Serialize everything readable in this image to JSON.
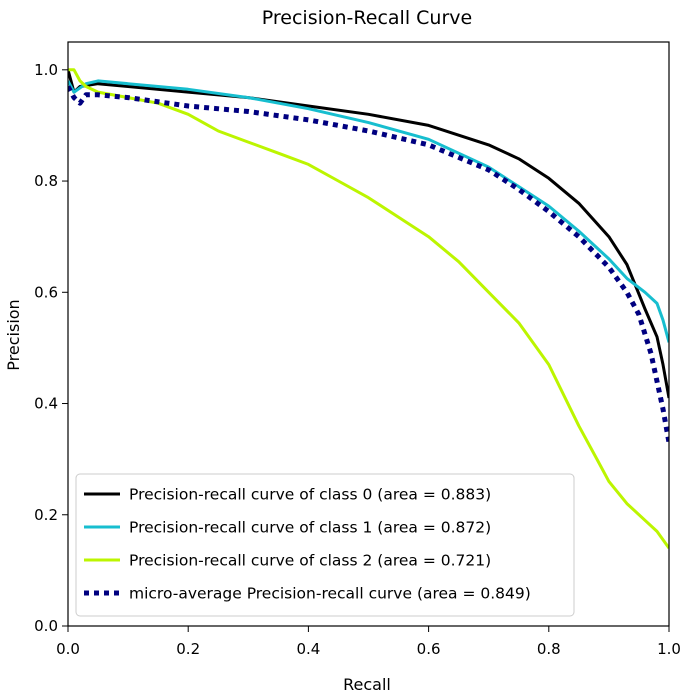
{
  "chart_data": {
    "type": "line",
    "title": "Precision-Recall Curve",
    "xlabel": "Recall",
    "ylabel": "Precision",
    "xlim": [
      0.0,
      1.0
    ],
    "ylim": [
      0.0,
      1.05
    ],
    "xticks": [
      0.0,
      0.2,
      0.4,
      0.6,
      0.8,
      1.0
    ],
    "yticks": [
      0.0,
      0.2,
      0.4,
      0.6,
      0.8,
      1.0
    ],
    "xtick_labels": [
      "0.0",
      "0.2",
      "0.4",
      "0.6",
      "0.8",
      "1.0"
    ],
    "ytick_labels": [
      "0.0",
      "0.2",
      "0.4",
      "0.6",
      "0.8",
      "1.0"
    ],
    "grid": false,
    "legend_position": "lower-left",
    "series": [
      {
        "name": "Precision-recall curve of class 0 (area = 0.883)",
        "color": "#000000",
        "style": "solid",
        "x": [
          0.0,
          0.01,
          0.02,
          0.05,
          0.1,
          0.2,
          0.3,
          0.4,
          0.5,
          0.6,
          0.7,
          0.75,
          0.8,
          0.85,
          0.9,
          0.93,
          0.96,
          0.98,
          0.99,
          1.0
        ],
        "y": [
          1.0,
          0.96,
          0.97,
          0.975,
          0.97,
          0.96,
          0.95,
          0.935,
          0.92,
          0.9,
          0.865,
          0.84,
          0.805,
          0.76,
          0.7,
          0.65,
          0.57,
          0.52,
          0.47,
          0.41
        ]
      },
      {
        "name": "Precision-recall curve of class 1 (area = 0.872)",
        "color": "#17becf",
        "style": "solid",
        "x": [
          0.0,
          0.01,
          0.03,
          0.05,
          0.1,
          0.2,
          0.3,
          0.4,
          0.5,
          0.6,
          0.7,
          0.75,
          0.8,
          0.85,
          0.9,
          0.93,
          0.96,
          0.98,
          0.99,
          1.0
        ],
        "y": [
          0.98,
          0.96,
          0.975,
          0.98,
          0.975,
          0.965,
          0.95,
          0.93,
          0.905,
          0.875,
          0.825,
          0.79,
          0.755,
          0.71,
          0.66,
          0.625,
          0.6,
          0.58,
          0.55,
          0.51
        ]
      },
      {
        "name": "Precision-recall curve of class 2 (area = 0.721)",
        "color": "#bcf500",
        "style": "solid",
        "x": [
          0.0,
          0.01,
          0.02,
          0.03,
          0.05,
          0.1,
          0.15,
          0.2,
          0.25,
          0.3,
          0.35,
          0.4,
          0.45,
          0.5,
          0.55,
          0.6,
          0.65,
          0.7,
          0.75,
          0.8,
          0.85,
          0.88,
          0.9,
          0.93,
          0.96,
          0.98,
          1.0
        ],
        "y": [
          1.0,
          1.0,
          0.98,
          0.97,
          0.96,
          0.95,
          0.94,
          0.92,
          0.89,
          0.87,
          0.85,
          0.83,
          0.8,
          0.77,
          0.735,
          0.7,
          0.655,
          0.6,
          0.545,
          0.47,
          0.36,
          0.3,
          0.26,
          0.22,
          0.19,
          0.17,
          0.14
        ]
      },
      {
        "name": "micro-average Precision-recall curve (area = 0.849)",
        "color": "#000080",
        "style": "dotted",
        "x": [
          0.0,
          0.01,
          0.02,
          0.03,
          0.05,
          0.1,
          0.2,
          0.3,
          0.4,
          0.5,
          0.6,
          0.7,
          0.75,
          0.8,
          0.85,
          0.9,
          0.93,
          0.95,
          0.97,
          0.98,
          0.99,
          1.0
        ],
        "y": [
          0.97,
          0.95,
          0.94,
          0.955,
          0.955,
          0.95,
          0.935,
          0.925,
          0.91,
          0.89,
          0.865,
          0.82,
          0.785,
          0.745,
          0.7,
          0.645,
          0.6,
          0.56,
          0.49,
          0.44,
          0.39,
          0.33
        ]
      }
    ]
  }
}
